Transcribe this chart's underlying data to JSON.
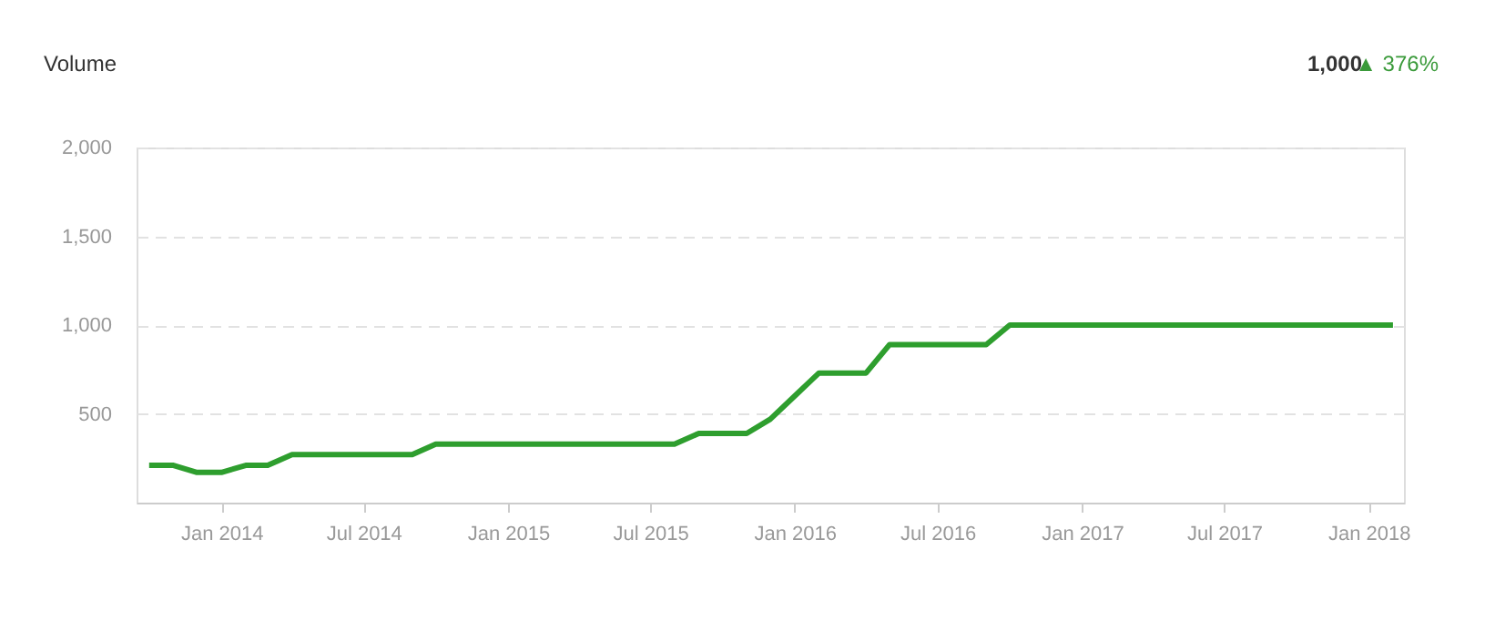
{
  "chart_data": {
    "type": "line",
    "title": "Volume",
    "annotations": [
      "1,000",
      "▲ 376%"
    ],
    "x": [
      "2013-10",
      "2013-11",
      "2013-12",
      "2014-01",
      "2014-02",
      "2014-03",
      "2014-04",
      "2014-05",
      "2014-06",
      "2014-07",
      "2014-08",
      "2014-09",
      "2014-10",
      "2014-11",
      "2014-12",
      "2015-01",
      "2015-02",
      "2015-03",
      "2015-04",
      "2015-05",
      "2015-06",
      "2015-07",
      "2015-08",
      "2015-09",
      "2015-10",
      "2015-11",
      "2015-12",
      "2016-01",
      "2016-02",
      "2016-03",
      "2016-04",
      "2016-05",
      "2016-06",
      "2016-07",
      "2016-08",
      "2016-09",
      "2016-10",
      "2016-11",
      "2016-12",
      "2017-01",
      "2017-02",
      "2017-03",
      "2017-04",
      "2017-05",
      "2017-06",
      "2017-07",
      "2017-08",
      "2017-09",
      "2017-10",
      "2017-11",
      "2017-12",
      "2018-01",
      "2018-02"
    ],
    "series": [
      {
        "color": "#2e9e2e",
        "values": [
          210,
          210,
          170,
          170,
          210,
          210,
          270,
          270,
          270,
          270,
          270,
          270,
          330,
          330,
          330,
          330,
          330,
          330,
          330,
          330,
          330,
          330,
          330,
          390,
          390,
          390,
          470,
          600,
          730,
          730,
          730,
          890,
          890,
          890,
          890,
          890,
          1000,
          1000,
          1000,
          1000,
          1000,
          1000,
          1000,
          1000,
          1000,
          1000,
          1000,
          1000,
          1000,
          1000,
          1000,
          1000,
          1000
        ]
      }
    ],
    "xlim": [
      "2013-09-15",
      "2018-02-15"
    ],
    "xticks": [
      {
        "value": "2014-01",
        "label": "Jan 2014"
      },
      {
        "value": "2014-07",
        "label": "Jul 2014"
      },
      {
        "value": "2015-01",
        "label": "Jan 2015"
      },
      {
        "value": "2015-07",
        "label": "Jul 2015"
      },
      {
        "value": "2016-01",
        "label": "Jan 2016"
      },
      {
        "value": "2016-07",
        "label": "Jul 2016"
      },
      {
        "value": "2017-01",
        "label": "Jan 2017"
      },
      {
        "value": "2017-07",
        "label": "Jul 2017"
      },
      {
        "value": "2018-01",
        "label": "Jan 2018"
      }
    ],
    "ylim": [
      0,
      2000
    ],
    "yticks": [
      {
        "value": 500,
        "label": "500"
      },
      {
        "value": 1000,
        "label": "1,000"
      },
      {
        "value": 1500,
        "label": "1,500"
      },
      {
        "value": 2000,
        "label": "2,000"
      }
    ],
    "grid": "y",
    "marker": "none",
    "line_style": "solid"
  }
}
